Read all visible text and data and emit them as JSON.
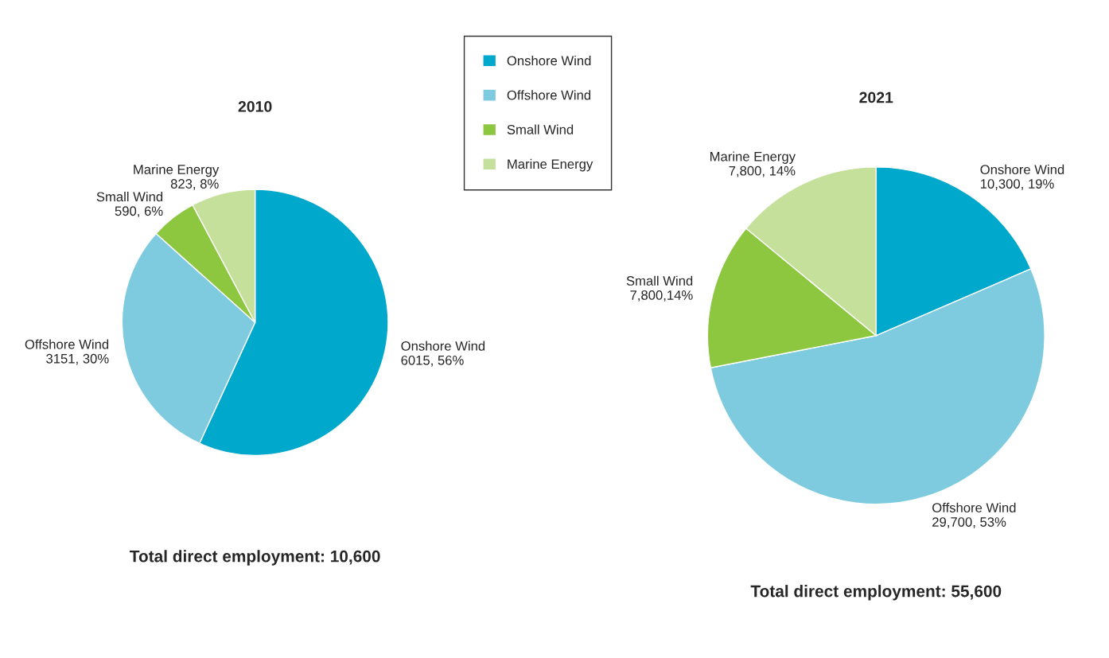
{
  "chart_data": [
    {
      "type": "pie",
      "title": "2010",
      "categories": [
        "Onshore Wind",
        "Offshore Wind",
        "Small Wind",
        "Marine Energy"
      ],
      "values": [
        6015,
        3151,
        590,
        823
      ],
      "colors": [
        "#00a8cc",
        "#7ecbe0",
        "#8dc63f",
        "#c5e09b"
      ],
      "value_labels": [
        "6015, 56%",
        "3151, 30%",
        "590, 6%",
        "823, 8%"
      ],
      "legend": "top right",
      "annotations": [
        "Total direct employment: 10,600"
      ]
    },
    {
      "type": "pie",
      "title": "2021",
      "categories": [
        "Onshore Wind",
        "Offshore Wind",
        "Small Wind",
        "Marine Energy"
      ],
      "values": [
        10300,
        29700,
        7800,
        7800
      ],
      "colors": [
        "#00a8cc",
        "#7ecbe0",
        "#8dc63f",
        "#c5e09b"
      ],
      "value_labels": [
        "10,300, 19%",
        "29,700, 53%",
        "7,800,14%",
        "7,800, 14%"
      ],
      "annotations": [
        "Total direct employment: 55,600"
      ]
    }
  ]
}
